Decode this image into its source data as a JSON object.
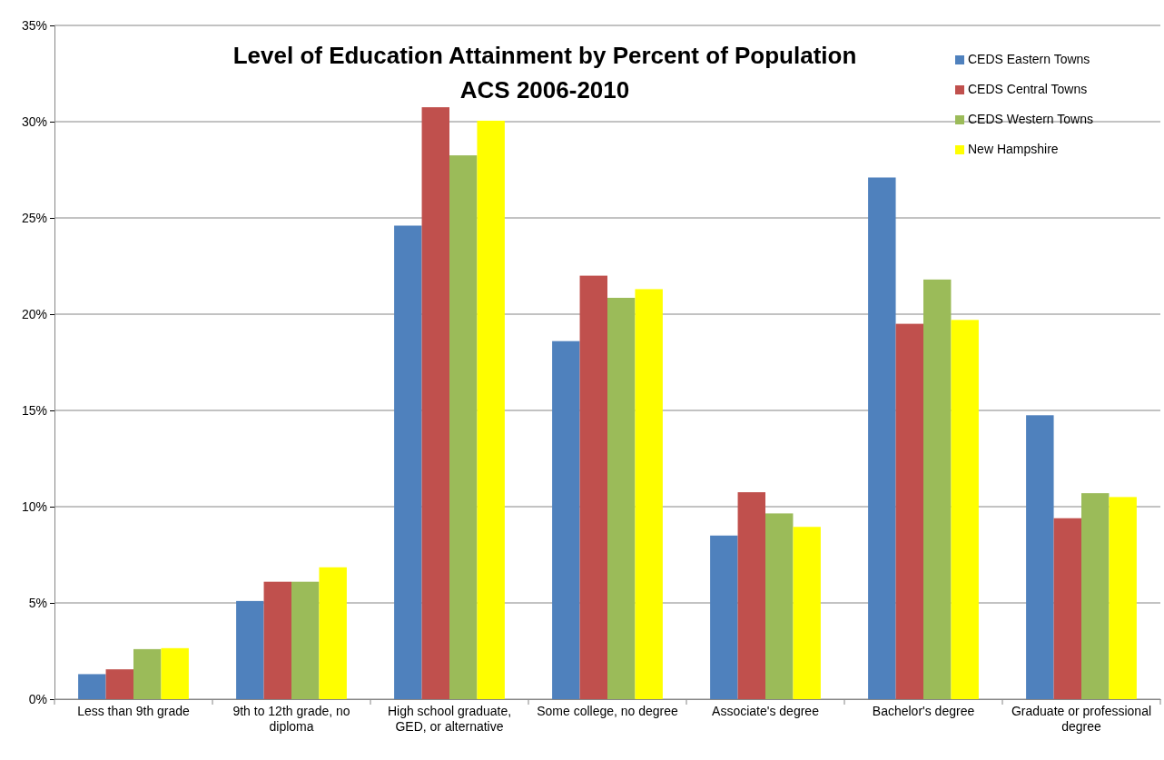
{
  "chart_data": {
    "type": "bar",
    "title": "Level of Education Attainment by Percent of Population",
    "subtitle": "ACS 2006-2010",
    "categories": [
      "Less than 9th grade",
      "9th to 12th grade, no diploma",
      "High school graduate, GED, or alternative",
      "Some college, no degree",
      "Associate's degree",
      "Bachelor's degree",
      "Graduate or professional degree"
    ],
    "series": [
      {
        "name": "CEDS Eastern Towns",
        "color": "#4f81bd",
        "values": [
          1.3,
          5.1,
          24.6,
          18.6,
          8.5,
          27.1,
          14.75
        ]
      },
      {
        "name": "CEDS Central Towns",
        "color": "#c0504d",
        "values": [
          1.55,
          6.1,
          30.75,
          22.0,
          10.75,
          19.5,
          9.4
        ]
      },
      {
        "name": "CEDS Western Towns",
        "color": "#9bbb59",
        "values": [
          2.6,
          6.1,
          28.25,
          20.85,
          9.65,
          21.8,
          10.7
        ]
      },
      {
        "name": "New Hampshire",
        "color": "#ffff00",
        "values": [
          2.65,
          6.85,
          30.05,
          21.3,
          8.95,
          19.7,
          10.5
        ]
      }
    ],
    "ylim": [
      0,
      35
    ],
    "yticks": [
      {
        "value": 0,
        "label": "0%"
      },
      {
        "value": 5,
        "label": "5%"
      },
      {
        "value": 10,
        "label": "10%"
      },
      {
        "value": 15,
        "label": "15%"
      },
      {
        "value": 20,
        "label": "20%"
      },
      {
        "value": 25,
        "label": "25%"
      },
      {
        "value": 30,
        "label": "30%"
      },
      {
        "value": 35,
        "label": "35%"
      }
    ],
    "grid": "y",
    "legend": "top right"
  }
}
